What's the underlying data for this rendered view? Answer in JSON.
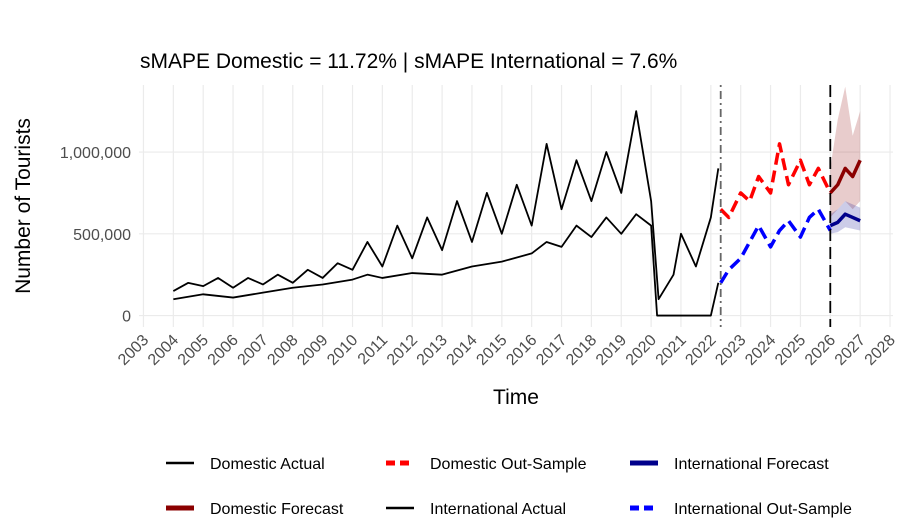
{
  "chart_data": {
    "type": "line",
    "title": "sMAPE Domestic = 11.72% | sMAPE International = 7.6%",
    "x_label": "Time",
    "y_label": "Number of Tourists",
    "xlim": [
      2002.85,
      2028.1
    ],
    "ylim": [
      -70000,
      1410000
    ],
    "xticks": [
      2003,
      2004,
      2005,
      2006,
      2007,
      2008,
      2009,
      2010,
      2011,
      2012,
      2013,
      2014,
      2015,
      2016,
      2017,
      2018,
      2019,
      2020,
      2021,
      2022,
      2023,
      2024,
      2025,
      2026,
      2027,
      2028
    ],
    "yticks": [
      0,
      {
        "value": 500000,
        "label": "500,000"
      },
      {
        "value": 1000000,
        "label": "1,000,000"
      }
    ],
    "grid": true,
    "vlines": [
      {
        "x": 2022.33,
        "linetype": "dotdash",
        "color": "#666666"
      },
      {
        "x": 2026,
        "linetype": "dashed",
        "color": "#000000"
      }
    ],
    "series": [
      {
        "name": "Domestic Actual",
        "color": "#000000",
        "linetype": "solid",
        "x": [
          2004,
          2004.5,
          2005,
          2005.5,
          2006,
          2006.5,
          2007,
          2007.5,
          2008,
          2008.5,
          2009,
          2009.5,
          2010,
          2010.5,
          2011,
          2011.5,
          2012,
          2012.5,
          2013,
          2013.5,
          2014,
          2014.5,
          2015,
          2015.5,
          2016,
          2016.5,
          2017,
          2017.5,
          2018,
          2018.5,
          2019,
          2019.5,
          2020,
          2020.25,
          2020.75,
          2021,
          2021.5,
          2022,
          2022.25
        ],
        "values": [
          150000,
          200000,
          180000,
          230000,
          170000,
          230000,
          190000,
          250000,
          200000,
          280000,
          230000,
          320000,
          280000,
          450000,
          300000,
          550000,
          350000,
          600000,
          400000,
          700000,
          450000,
          750000,
          500000,
          800000,
          550000,
          1050000,
          650000,
          950000,
          700000,
          1000000,
          750000,
          1250000,
          700000,
          100000,
          250000,
          500000,
          300000,
          600000,
          900000
        ]
      },
      {
        "name": "Domestic Forecast",
        "color": "#8b0000",
        "linetype": "solid",
        "x": [
          2026,
          2026.25,
          2026.5,
          2026.75,
          2027
        ],
        "values": [
          750000,
          800000,
          900000,
          850000,
          950000
        ],
        "lower": [
          600000,
          650000,
          700000,
          650000,
          700000
        ],
        "upper": [
          900000,
          1200000,
          1400000,
          1100000,
          1250000
        ]
      },
      {
        "name": "Domestic Out-Sample",
        "color": "#ff0000",
        "linetype": "dashed",
        "x": [
          2022.33,
          2022.6,
          2023,
          2023.3,
          2023.6,
          2024,
          2024.3,
          2024.6,
          2025,
          2025.3,
          2025.6,
          2026
        ],
        "values": [
          650000,
          600000,
          750000,
          700000,
          850000,
          750000,
          1050000,
          800000,
          950000,
          800000,
          900000,
          750000
        ]
      },
      {
        "name": "International Actual",
        "color": "#000000",
        "linetype": "solid",
        "x": [
          2004,
          2005,
          2006,
          2007,
          2008,
          2009,
          2010,
          2010.5,
          2011,
          2012,
          2013,
          2014,
          2015,
          2016,
          2016.5,
          2017,
          2017.5,
          2018,
          2018.5,
          2019,
          2019.5,
          2020,
          2020.2,
          2021,
          2022,
          2022.25
        ],
        "values": [
          100000,
          130000,
          110000,
          140000,
          170000,
          190000,
          220000,
          250000,
          230000,
          260000,
          250000,
          300000,
          330000,
          380000,
          450000,
          420000,
          550000,
          480000,
          600000,
          500000,
          620000,
          550000,
          0,
          0,
          0,
          200000
        ]
      },
      {
        "name": "International Forecast",
        "color": "#00008b",
        "linetype": "solid",
        "x": [
          2026,
          2026.25,
          2026.5,
          2026.75,
          2027
        ],
        "values": [
          550000,
          570000,
          620000,
          600000,
          580000
        ],
        "lower": [
          500000,
          510000,
          540000,
          530000,
          520000
        ],
        "upper": [
          620000,
          650000,
          700000,
          680000,
          660000
        ]
      },
      {
        "name": "International Out-Sample",
        "color": "#0000ff",
        "linetype": "dashed",
        "x": [
          2022.33,
          2022.6,
          2023,
          2023.3,
          2023.6,
          2024,
          2024.3,
          2024.6,
          2025,
          2025.3,
          2025.6,
          2026
        ],
        "values": [
          200000,
          280000,
          350000,
          450000,
          550000,
          420000,
          520000,
          580000,
          480000,
          600000,
          650000,
          520000
        ]
      }
    ]
  }
}
